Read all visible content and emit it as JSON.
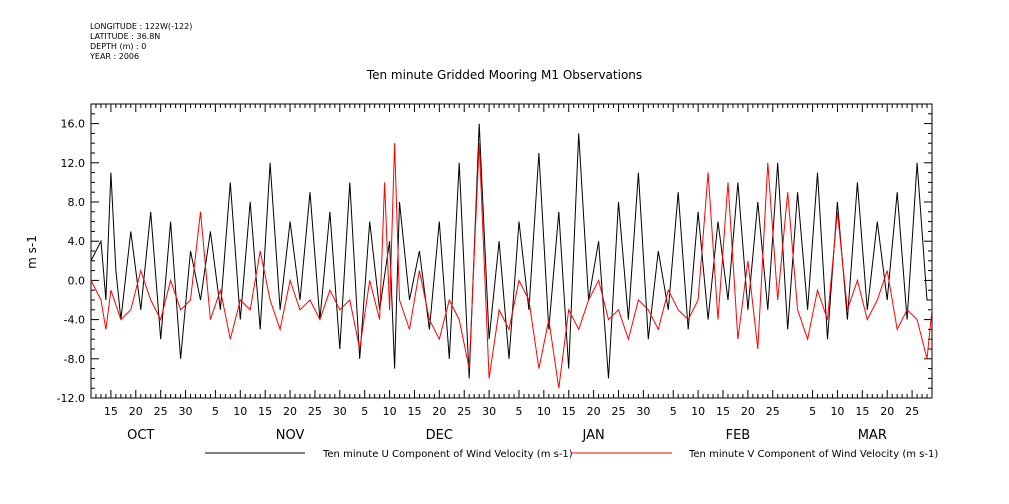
{
  "header": {
    "longitude": "LONGITUDE : 122W(-122)",
    "latitude": "LATITUDE : 36.8N",
    "depth": "DEPTH (m) : 0",
    "year": "YEAR : 2006"
  },
  "chart_data": {
    "type": "line",
    "title": "Ten minute Gridded Mooring M1 Observations",
    "ylabel": "m s-1",
    "xlabel": "",
    "ylim": [
      -12,
      18
    ],
    "yticks": [
      -12,
      -8,
      -4,
      0,
      4,
      8,
      12,
      16
    ],
    "ytick_labels": [
      "-12.0",
      "-8.0",
      "-4.0",
      "0.0",
      "4.0",
      "8.0",
      "12.0",
      "16.0"
    ],
    "x_day_range": [
      0,
      169
    ],
    "day_ticks": [
      {
        "day": 4,
        "label": "15"
      },
      {
        "day": 9,
        "label": "20"
      },
      {
        "day": 14,
        "label": "25"
      },
      {
        "day": 19,
        "label": "30"
      },
      {
        "day": 25,
        "label": "5"
      },
      {
        "day": 30,
        "label": "10"
      },
      {
        "day": 35,
        "label": "15"
      },
      {
        "day": 40,
        "label": "20"
      },
      {
        "day": 45,
        "label": "25"
      },
      {
        "day": 50,
        "label": "30"
      },
      {
        "day": 55,
        "label": "5"
      },
      {
        "day": 60,
        "label": "10"
      },
      {
        "day": 65,
        "label": "15"
      },
      {
        "day": 70,
        "label": "20"
      },
      {
        "day": 75,
        "label": "25"
      },
      {
        "day": 80,
        "label": "30"
      },
      {
        "day": 86,
        "label": "5"
      },
      {
        "day": 91,
        "label": "10"
      },
      {
        "day": 96,
        "label": "15"
      },
      {
        "day": 101,
        "label": "20"
      },
      {
        "day": 106,
        "label": "25"
      },
      {
        "day": 111,
        "label": "30"
      },
      {
        "day": 117,
        "label": "5"
      },
      {
        "day": 122,
        "label": "10"
      },
      {
        "day": 127,
        "label": "15"
      },
      {
        "day": 132,
        "label": "20"
      },
      {
        "day": 137,
        "label": "25"
      },
      {
        "day": 145,
        "label": "5"
      },
      {
        "day": 150,
        "label": "10"
      },
      {
        "day": 155,
        "label": "15"
      },
      {
        "day": 160,
        "label": "20"
      },
      {
        "day": 165,
        "label": "25"
      }
    ],
    "months": [
      {
        "label": "OCT",
        "day": 10
      },
      {
        "label": "NOV",
        "day": 40
      },
      {
        "label": "DEC",
        "day": 70
      },
      {
        "label": "JAN",
        "day": 101
      },
      {
        "label": "FEB",
        "day": 130
      },
      {
        "label": "MAR",
        "day": 157
      }
    ],
    "series": [
      {
        "name": "Ten minute U Component of Wind Velocity (m s-1)",
        "color": "#000000",
        "x": [
          0,
          2,
          3,
          4,
          5,
          6,
          8,
          10,
          12,
          14,
          16,
          18,
          20,
          22,
          24,
          26,
          28,
          30,
          32,
          34,
          36,
          38,
          40,
          42,
          44,
          46,
          48,
          50,
          52,
          54,
          56,
          58,
          60,
          61,
          62,
          64,
          66,
          68,
          70,
          72,
          74,
          76,
          78,
          80,
          82,
          84,
          86,
          88,
          90,
          92,
          94,
          96,
          98,
          100,
          102,
          104,
          106,
          108,
          110,
          112,
          114,
          116,
          118,
          120,
          122,
          124,
          126,
          128,
          130,
          132,
          134,
          136,
          138,
          140,
          142,
          144,
          146,
          148,
          150,
          152,
          154,
          156,
          158,
          160,
          162,
          164,
          166,
          168,
          169
        ],
        "values": [
          2,
          4,
          -2,
          11,
          1,
          -4,
          5,
          -3,
          7,
          -6,
          6,
          -8,
          3,
          -2,
          5,
          -3,
          10,
          -4,
          8,
          -5,
          12,
          -3,
          6,
          -2,
          9,
          -4,
          7,
          -7,
          10,
          -8,
          6,
          -3,
          4,
          -9,
          8,
          -2,
          3,
          -5,
          6,
          -8,
          12,
          -10,
          16,
          -6,
          4,
          -8,
          6,
          -3,
          13,
          -5,
          7,
          -9,
          15,
          -2,
          4,
          -10,
          8,
          -4,
          11,
          -6,
          3,
          -3,
          9,
          -5,
          7,
          -4,
          6,
          -2,
          10,
          -3,
          8,
          -3,
          12,
          -5,
          9,
          -3,
          11,
          -6,
          8,
          -4,
          10,
          -3,
          6,
          -2,
          9,
          -4,
          12,
          -2,
          -2
        ]
      },
      {
        "name": "Ten minute V Component of Wind Velocity (m s-1)",
        "color": "#ff0000",
        "x": [
          0,
          2,
          3,
          4,
          6,
          8,
          10,
          12,
          14,
          16,
          18,
          20,
          22,
          24,
          26,
          28,
          30,
          32,
          34,
          36,
          38,
          40,
          42,
          44,
          46,
          48,
          50,
          52,
          54,
          56,
          58,
          59,
          60,
          61,
          62,
          64,
          66,
          68,
          70,
          72,
          74,
          76,
          78,
          80,
          82,
          84,
          86,
          88,
          90,
          92,
          94,
          96,
          98,
          100,
          102,
          104,
          106,
          108,
          110,
          112,
          114,
          116,
          118,
          120,
          122,
          124,
          126,
          128,
          130,
          132,
          134,
          136,
          138,
          140,
          142,
          144,
          146,
          148,
          150,
          152,
          154,
          156,
          158,
          160,
          162,
          164,
          166,
          168,
          169
        ],
        "values": [
          0,
          -2,
          -5,
          -1,
          -4,
          -3,
          1,
          -2,
          -4,
          0,
          -3,
          -2,
          7,
          -4,
          -1,
          -6,
          -2,
          -3,
          3,
          -2,
          -5,
          0,
          -3,
          -2,
          -4,
          -1,
          -3,
          -2,
          -7,
          0,
          -4,
          10,
          -3,
          14,
          -2,
          -5,
          1,
          -4,
          -6,
          -2,
          -4,
          -9,
          14,
          -10,
          -3,
          -5,
          0,
          -2,
          -9,
          -4,
          -11,
          -3,
          -5,
          -2,
          0,
          -4,
          -3,
          -6,
          -2,
          -3,
          -5,
          -1,
          -3,
          -4,
          -2,
          11,
          -4,
          10,
          -6,
          2,
          -7,
          12,
          -2,
          9,
          -3,
          -6,
          -1,
          -4,
          7,
          -3,
          0,
          -4,
          -2,
          1,
          -5,
          -3,
          -4,
          -8,
          -3
        ]
      }
    ]
  }
}
